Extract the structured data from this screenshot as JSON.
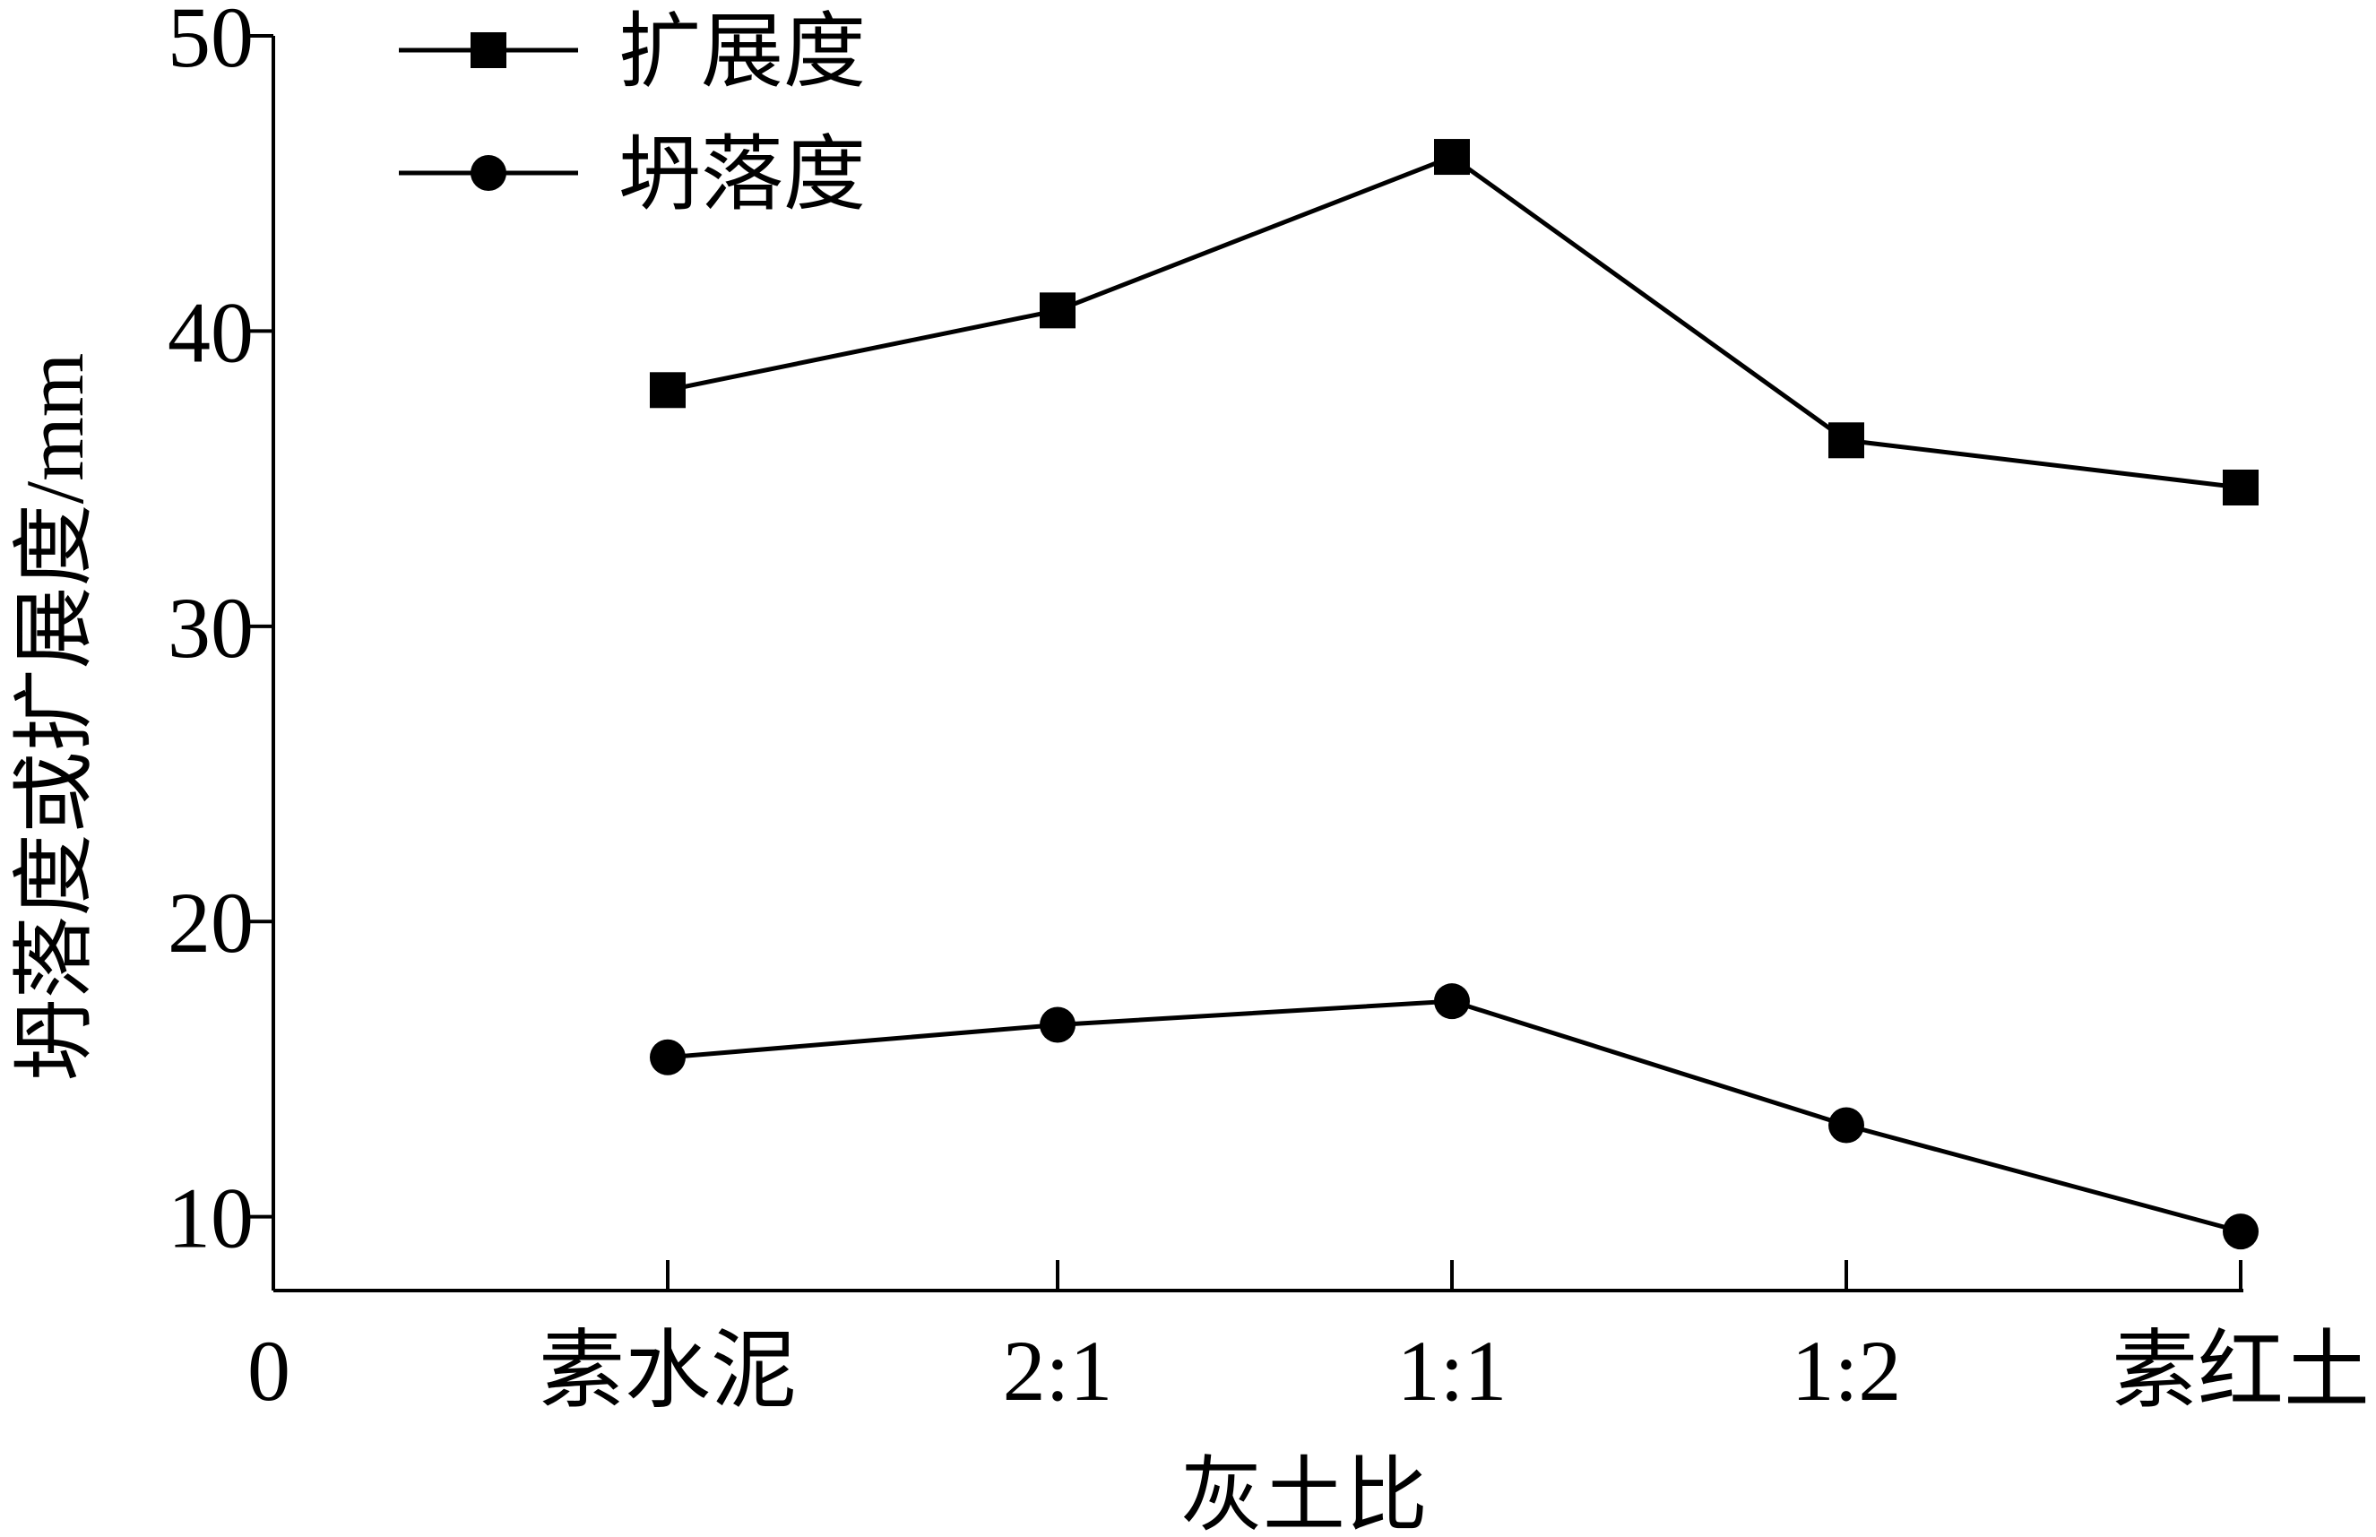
{
  "chart_data": {
    "type": "line",
    "xlabel": "灰土比",
    "ylabel": "坍落度或扩展度/mm",
    "origin_label": "0",
    "categories": [
      "素水泥",
      "2:1",
      "1:1",
      "1:2",
      "素红土"
    ],
    "ylim": [
      7.5,
      50
    ],
    "yticks": [
      10,
      20,
      30,
      40,
      50
    ],
    "grid": false,
    "legend_position": "top-left",
    "series": [
      {
        "name": "扩展度",
        "marker": "square",
        "values": [
          38.0,
          40.7,
          45.9,
          36.3,
          34.7
        ]
      },
      {
        "name": "坍落度",
        "marker": "circle",
        "values": [
          15.4,
          16.5,
          17.3,
          13.1,
          9.5
        ]
      }
    ],
    "colors": {
      "line": "#000000",
      "background": "#ffffff"
    }
  }
}
